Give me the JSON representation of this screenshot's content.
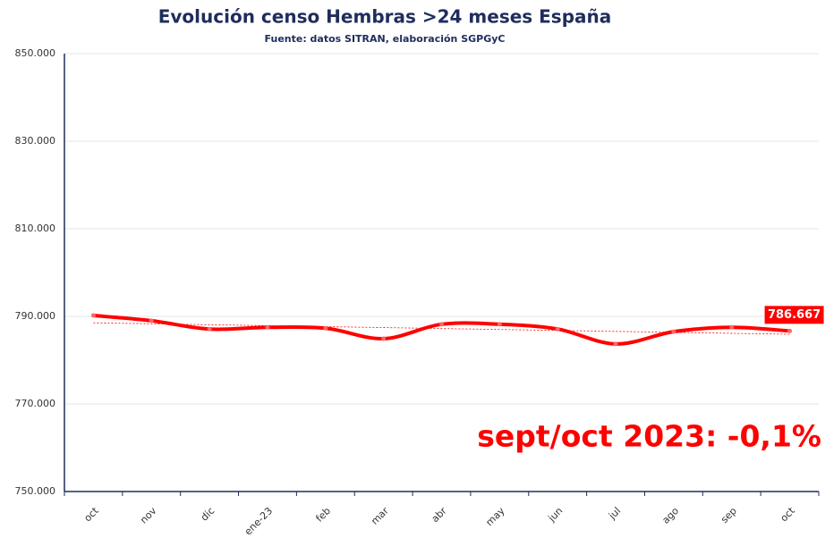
{
  "chart_data": {
    "type": "line",
    "title": "Evolución censo Hembras >24 meses España",
    "subtitle": "Fuente: datos SITRAN, elaboración SGPGyC",
    "annotation": "sept/oct 2023: -0,1%",
    "categories": [
      "oct",
      "nov",
      "dic",
      "ene-23",
      "feb",
      "mar",
      "abr",
      "may",
      "jun",
      "jul",
      "ago",
      "sep",
      "oct"
    ],
    "values": [
      790200,
      789000,
      787100,
      787500,
      787300,
      784900,
      788200,
      788200,
      787100,
      783700,
      786500,
      787500,
      786667
    ],
    "value_labels": [
      null,
      null,
      null,
      null,
      null,
      null,
      null,
      null,
      null,
      null,
      null,
      null,
      "786.667"
    ],
    "color": "#ff0000",
    "trendline": true,
    "ylim": [
      750000,
      850000
    ],
    "yticks": [
      {
        "value": 750000,
        "label": "750.000"
      },
      {
        "value": 770000,
        "label": "770.000"
      },
      {
        "value": 790000,
        "label": "790.000"
      },
      {
        "value": 810000,
        "label": "810.000"
      },
      {
        "value": 830000,
        "label": "830.000"
      },
      {
        "value": 850000,
        "label": "850.000"
      }
    ],
    "grid": true
  }
}
